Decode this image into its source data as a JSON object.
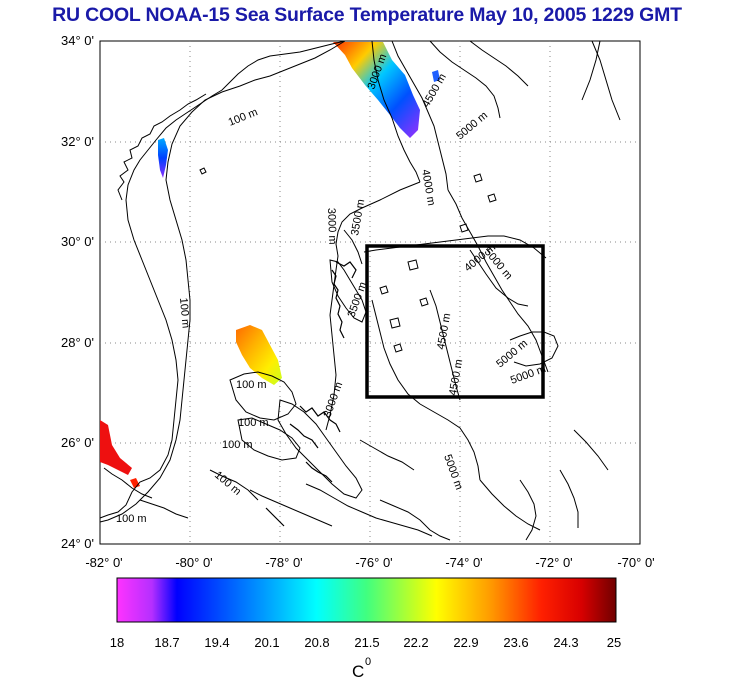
{
  "title": "RU COOL  NOAA-15 Sea Surface Temperature May 10, 2005 1229 GMT",
  "lat_labels": [
    "34° 0'",
    "32° 0'",
    "30° 0'",
    "28° 0'",
    "26° 0'",
    "24° 0'"
  ],
  "lon_labels": [
    "-82° 0'",
    "-80° 0'",
    "-78° 0'",
    "-76° 0'",
    "-74° 0'",
    "-72° 0'",
    "-70° 0'"
  ],
  "contour_labels": {
    "c100_a": "100 m",
    "c100_b": "100 m",
    "c100_c": "100 m",
    "c100_d": "100 m",
    "c100_e": "100 m",
    "c100_f": "100 m",
    "c100_g": "100 m",
    "c3000_a": "3000 m",
    "c3000_b": "3000 m",
    "c3000_c": "3000 m",
    "c4000_a": "4000 m",
    "c4000_b": "4000 m",
    "c4500_a": "4500 m",
    "c4500_b": "4500 m",
    "c4500_c": "4500 m",
    "c5000_a": "5000 m",
    "c5000_b": "5000 m",
    "c5000_c": "5000 m",
    "c5000_d": "5000 m",
    "c5000_e": "5000 m",
    "c3500_a": "3500 m",
    "c3500_b": "3500 m"
  },
  "colorbar": {
    "ticks": [
      "18",
      "18.7",
      "19.4",
      "20.1",
      "20.8",
      "21.5",
      "22.2",
      "22.9",
      "23.6",
      "24.3",
      "25"
    ],
    "unit": "C",
    "unit_sup": "0",
    "colors": [
      "#ff33ff",
      "#9b2fff",
      "#0000ff",
      "#0080ff",
      "#00ffff",
      "#33ff99",
      "#99ff33",
      "#ffff00",
      "#ff9900",
      "#ff2a00",
      "#cc0000",
      "#7a0000"
    ]
  },
  "study_box": {
    "lon_min": -76,
    "lon_max": -72,
    "lat_min": 27,
    "lat_max": 30
  },
  "map_extent": {
    "lon_min": -82,
    "lon_max": -70,
    "lat_min": 24,
    "lat_max": 34
  }
}
